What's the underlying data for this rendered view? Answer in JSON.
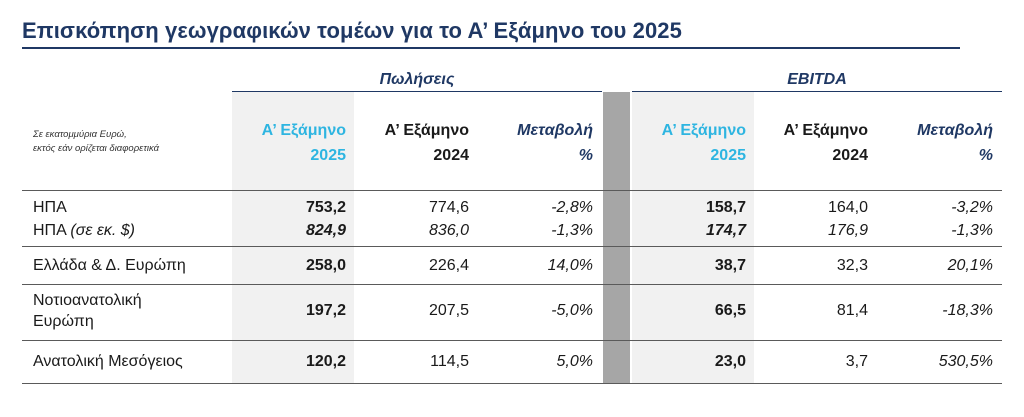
{
  "title": "Επισκόπηση γεωγραφικών τομέων για το Α’ Εξάμηνο του 2025",
  "groups": {
    "sales": "Πωλήσεις",
    "ebitda": "EBITDA"
  },
  "note": {
    "line1": "Σε εκατομμύρια Ευρώ,",
    "line2": "εκτός εάν ορίζεται διαφορετικά"
  },
  "headers": {
    "cur": {
      "l1": "Α’ Εξάμηνο",
      "l2": "2025"
    },
    "prev": {
      "l1": "Α’ Εξάμηνο",
      "l2": "2024"
    },
    "chg": {
      "l1": "Μεταβολή",
      "l2": "%"
    }
  },
  "colors": {
    "title": "#1f3864",
    "current_period": "#2eb5e1",
    "shade": "#f1f1f1",
    "divider": "#a6a6a6"
  },
  "rows": [
    {
      "label": "ΗΠΑ",
      "s_cur": "753,2",
      "s_prev": "774,6",
      "s_chg": "-2,8%",
      "e_cur": "158,7",
      "e_prev": "164,0",
      "e_chg": "-3,2%"
    },
    {
      "label": "ΗΠΑ",
      "label_note": "(σε εκ. $)",
      "s_cur": "824,9",
      "s_prev": "836,0",
      "s_chg": "-1,3%",
      "e_cur": "174,7",
      "e_prev": "176,9",
      "e_chg": "-1,3%"
    },
    {
      "label": "Ελλάδα & Δ. Ευρώπη",
      "s_cur": "258,0",
      "s_prev": "226,4",
      "s_chg": "14,0%",
      "e_cur": "38,7",
      "e_prev": "32,3",
      "e_chg": "20,1%"
    },
    {
      "label_l1": "Νοτιοανατολική",
      "label_l2": "Ευρώπη",
      "s_cur": "197,2",
      "s_prev": "207,5",
      "s_chg": "-5,0%",
      "e_cur": "66,5",
      "e_prev": "81,4",
      "e_chg": "-18,3%"
    },
    {
      "label": "Ανατολική Μεσόγειος",
      "s_cur": "120,2",
      "s_prev": "114,5",
      "s_chg": "5,0%",
      "e_cur": "23,0",
      "e_prev": "3,7",
      "e_chg": "530,5%"
    }
  ]
}
